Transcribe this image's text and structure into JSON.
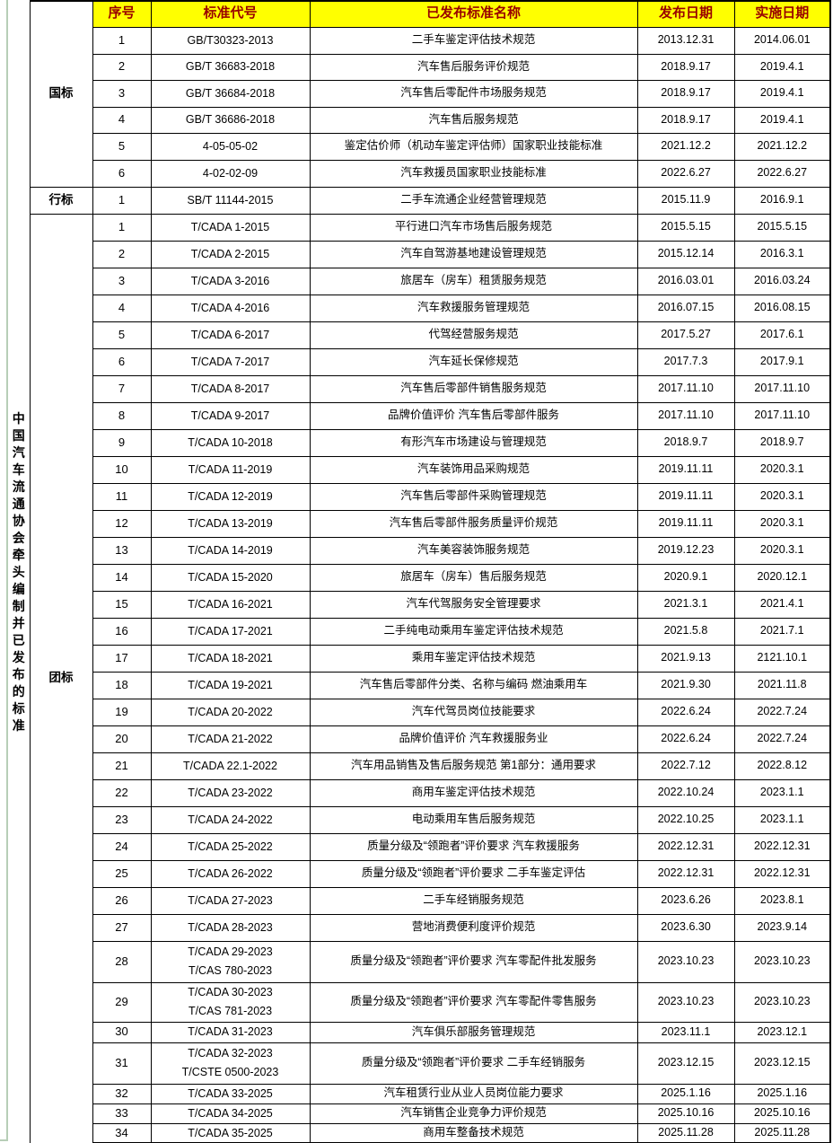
{
  "colors": {
    "header_bg": "#FFFF00",
    "header_text": "#990000",
    "border": "#000000",
    "page_edge_green": "#B7CEB7"
  },
  "table": {
    "title_vertical": "中国汽车流通协会牵头编制并已发布的标准",
    "header": {
      "columns": [
        "序号",
        "标准代号",
        "已发布标准名称",
        "发布日期",
        "实施日期"
      ]
    },
    "sections": [
      {
        "label": "国标",
        "rows": [
          {
            "no": "1",
            "code": "GB/T30323-2013",
            "name": "二手车鉴定评估技术规范",
            "published": "2013.12.31",
            "implemented": "2014.06.01"
          },
          {
            "no": "2",
            "code": "GB/T 36683-2018",
            "name": "汽车售后服务评价规范",
            "published": "2018.9.17",
            "implemented": "2019.4.1"
          },
          {
            "no": "3",
            "code": "GB/T 36684-2018",
            "name": "汽车售后零配件市场服务规范",
            "published": "2018.9.17",
            "implemented": "2019.4.1"
          },
          {
            "no": "4",
            "code": "GB/T 36686-2018",
            "name": "汽车售后服务规范",
            "published": "2018.9.17",
            "implemented": "2019.4.1"
          },
          {
            "no": "5",
            "code": "4-05-05-02",
            "name": "鉴定估价师（机动车鉴定评估师）国家职业技能标准",
            "published": "2021.12.2",
            "implemented": "2021.12.2"
          },
          {
            "no": "6",
            "code": "4-02-02-09",
            "name": "汽车救援员国家职业技能标准",
            "published": "2022.6.27",
            "implemented": "2022.6.27"
          }
        ]
      },
      {
        "label": "行标",
        "rows": [
          {
            "no": "1",
            "code": "SB/T 11144-2015",
            "name": "二手车流通企业经营管理规范",
            "published": "2015.11.9",
            "implemented": "2016.9.1"
          }
        ]
      },
      {
        "label": "团标",
        "rows": [
          {
            "no": "1",
            "code": "T/CADA 1-2015",
            "name": "平行进口汽车市场售后服务规范",
            "published": "2015.5.15",
            "implemented": "2015.5.15"
          },
          {
            "no": "2",
            "code": "T/CADA 2-2015",
            "name": "汽车自驾游基地建设管理规范",
            "published": "2015.12.14",
            "implemented": "2016.3.1"
          },
          {
            "no": "3",
            "code": "T/CADA 3-2016",
            "name": "旅居车（房车）租赁服务规范",
            "published": "2016.03.01",
            "implemented": "2016.03.24"
          },
          {
            "no": "4",
            "code": "T/CADA 4-2016",
            "name": "汽车救援服务管理规范",
            "published": "2016.07.15",
            "implemented": "2016.08.15"
          },
          {
            "no": "5",
            "code": "T/CADA 6-2017",
            "name": "代驾经营服务规范",
            "published": "2017.5.27",
            "implemented": "2017.6.1"
          },
          {
            "no": "6",
            "code": "T/CADA 7-2017",
            "name": "汽车延长保修规范",
            "published": "2017.7.3",
            "implemented": "2017.9.1"
          },
          {
            "no": "7",
            "code": "T/CADA 8-2017",
            "name": "汽车售后零部件销售服务规范",
            "published": "2017.11.10",
            "implemented": "2017.11.10"
          },
          {
            "no": "8",
            "code": "T/CADA 9-2017",
            "name": "品牌价值评价  汽车售后零部件服务",
            "published": "2017.11.10",
            "implemented": "2017.11.10"
          },
          {
            "no": "9",
            "code": "T/CADA 10-2018",
            "name": "有形汽车市场建设与管理规范",
            "published": "2018.9.7",
            "implemented": "2018.9.7"
          },
          {
            "no": "10",
            "code": "T/CADA 11-2019",
            "name": "汽车装饰用品采购规范",
            "published": "2019.11.11",
            "implemented": "2020.3.1"
          },
          {
            "no": "11",
            "code": "T/CADA 12-2019",
            "name": "汽车售后零部件采购管理规范",
            "published": "2019.11.11",
            "implemented": "2020.3.1"
          },
          {
            "no": "12",
            "code": "T/CADA 13-2019",
            "name": "汽车售后零部件服务质量评价规范",
            "published": "2019.11.11",
            "implemented": "2020.3.1"
          },
          {
            "no": "13",
            "code": "T/CADA 14-2019",
            "name": "汽车美容装饰服务规范",
            "published": "2019.12.23",
            "implemented": "2020.3.1"
          },
          {
            "no": "14",
            "code": "T/CADA 15-2020",
            "name": "旅居车（房车）售后服务规范",
            "published": "2020.9.1",
            "implemented": "2020.12.1"
          },
          {
            "no": "15",
            "code": "T/CADA 16-2021",
            "name": "汽车代驾服务安全管理要求",
            "published": "2021.3.1",
            "implemented": "2021.4.1"
          },
          {
            "no": "16",
            "code": "T/CADA 17-2021",
            "name": "二手纯电动乘用车鉴定评估技术规范",
            "published": "2021.5.8",
            "implemented": "2021.7.1"
          },
          {
            "no": "17",
            "code": "T/CADA 18-2021",
            "name": "乘用车鉴定评估技术规范",
            "published": "2021.9.13",
            "implemented": "2121.10.1"
          },
          {
            "no": "18",
            "code": "T/CADA 19-2021",
            "name": "汽车售后零部件分类、名称与编码 燃油乘用车",
            "published": "2021.9.30",
            "implemented": "2021.11.8"
          },
          {
            "no": "19",
            "code": "T/CADA 20-2022",
            "name": "汽车代驾员岗位技能要求",
            "published": "2022.6.24",
            "implemented": "2022.7.24"
          },
          {
            "no": "20",
            "code": "T/CADA 21-2022",
            "name": "品牌价值评价 汽车救援服务业",
            "published": "2022.6.24",
            "implemented": "2022.7.24"
          },
          {
            "no": "21",
            "code": "T/CADA 22.1-2022",
            "name": "汽车用品销售及售后服务规范 第1部分：通用要求",
            "published": "2022.7.12",
            "implemented": "2022.8.12"
          },
          {
            "no": "22",
            "code": "T/CADA 23-2022",
            "name": "商用车鉴定评估技术规范",
            "published": "2022.10.24",
            "implemented": "2023.1.1"
          },
          {
            "no": "23",
            "code": "T/CADA 24-2022",
            "name": "电动乘用车售后服务规范",
            "published": "2022.10.25",
            "implemented": "2023.1.1"
          },
          {
            "no": "24",
            "code": "T/CADA 25-2022",
            "name": "质量分级及“领跑者”评价要求  汽车救援服务",
            "published": "2022.12.31",
            "implemented": "2022.12.31"
          },
          {
            "no": "25",
            "code": "T/CADA 26-2022",
            "name": "质量分级及“领跑者”评价要求  二手车鉴定评估",
            "published": "2022.12.31",
            "implemented": "2022.12.31"
          },
          {
            "no": "26",
            "code": "T/CADA 27-2023",
            "name": "二手车经销服务规范",
            "published": "2023.6.26",
            "implemented": "2023.8.1"
          },
          {
            "no": "27",
            "code": "T/CADA 28-2023",
            "name": "营地消费便利度评价规范",
            "published": "2023.6.30",
            "implemented": "2023.9.14"
          },
          {
            "no": "28",
            "code": "T/CADA 29-2023\nT/CAS 780-2023",
            "name": "质量分级及“领跑者”评价要求  汽车零配件批发服务",
            "published": "2023.10.23",
            "implemented": "2023.10.23"
          },
          {
            "no": "29",
            "code": "T/CADA 30-2023\nT/CAS 781-2023",
            "name": "质量分级及“领跑者”评价要求  汽车零配件零售服务",
            "published": "2023.10.23",
            "implemented": "2023.10.23"
          },
          {
            "no": "30",
            "code": "T/CADA 31-2023",
            "name": "汽车俱乐部服务管理规范",
            "published": "2023.11.1",
            "implemented": "2023.12.1"
          },
          {
            "no": "31",
            "code": "T/CADA 32-2023\nT/CSTE 0500-2023",
            "name": "质量分级及“领跑者”评价要求  二手车经销服务",
            "published": "2023.12.15",
            "implemented": "2023.12.15"
          },
          {
            "no": "32",
            "code": "T/CADA 33-2025",
            "name": "汽车租赁行业从业人员岗位能力要求",
            "published": "2025.1.16",
            "implemented": "2025.1.16"
          },
          {
            "no": "33",
            "code": "T/CADA 34-2025",
            "name": "汽车销售企业竞争力评价规范",
            "published": "2025.10.16",
            "implemented": "2025.10.16"
          },
          {
            "no": "34",
            "code": "T/CADA 35-2025",
            "name": "商用车整备技术规范",
            "published": "2025.11.28",
            "implemented": "2025.11.28"
          }
        ]
      }
    ]
  }
}
